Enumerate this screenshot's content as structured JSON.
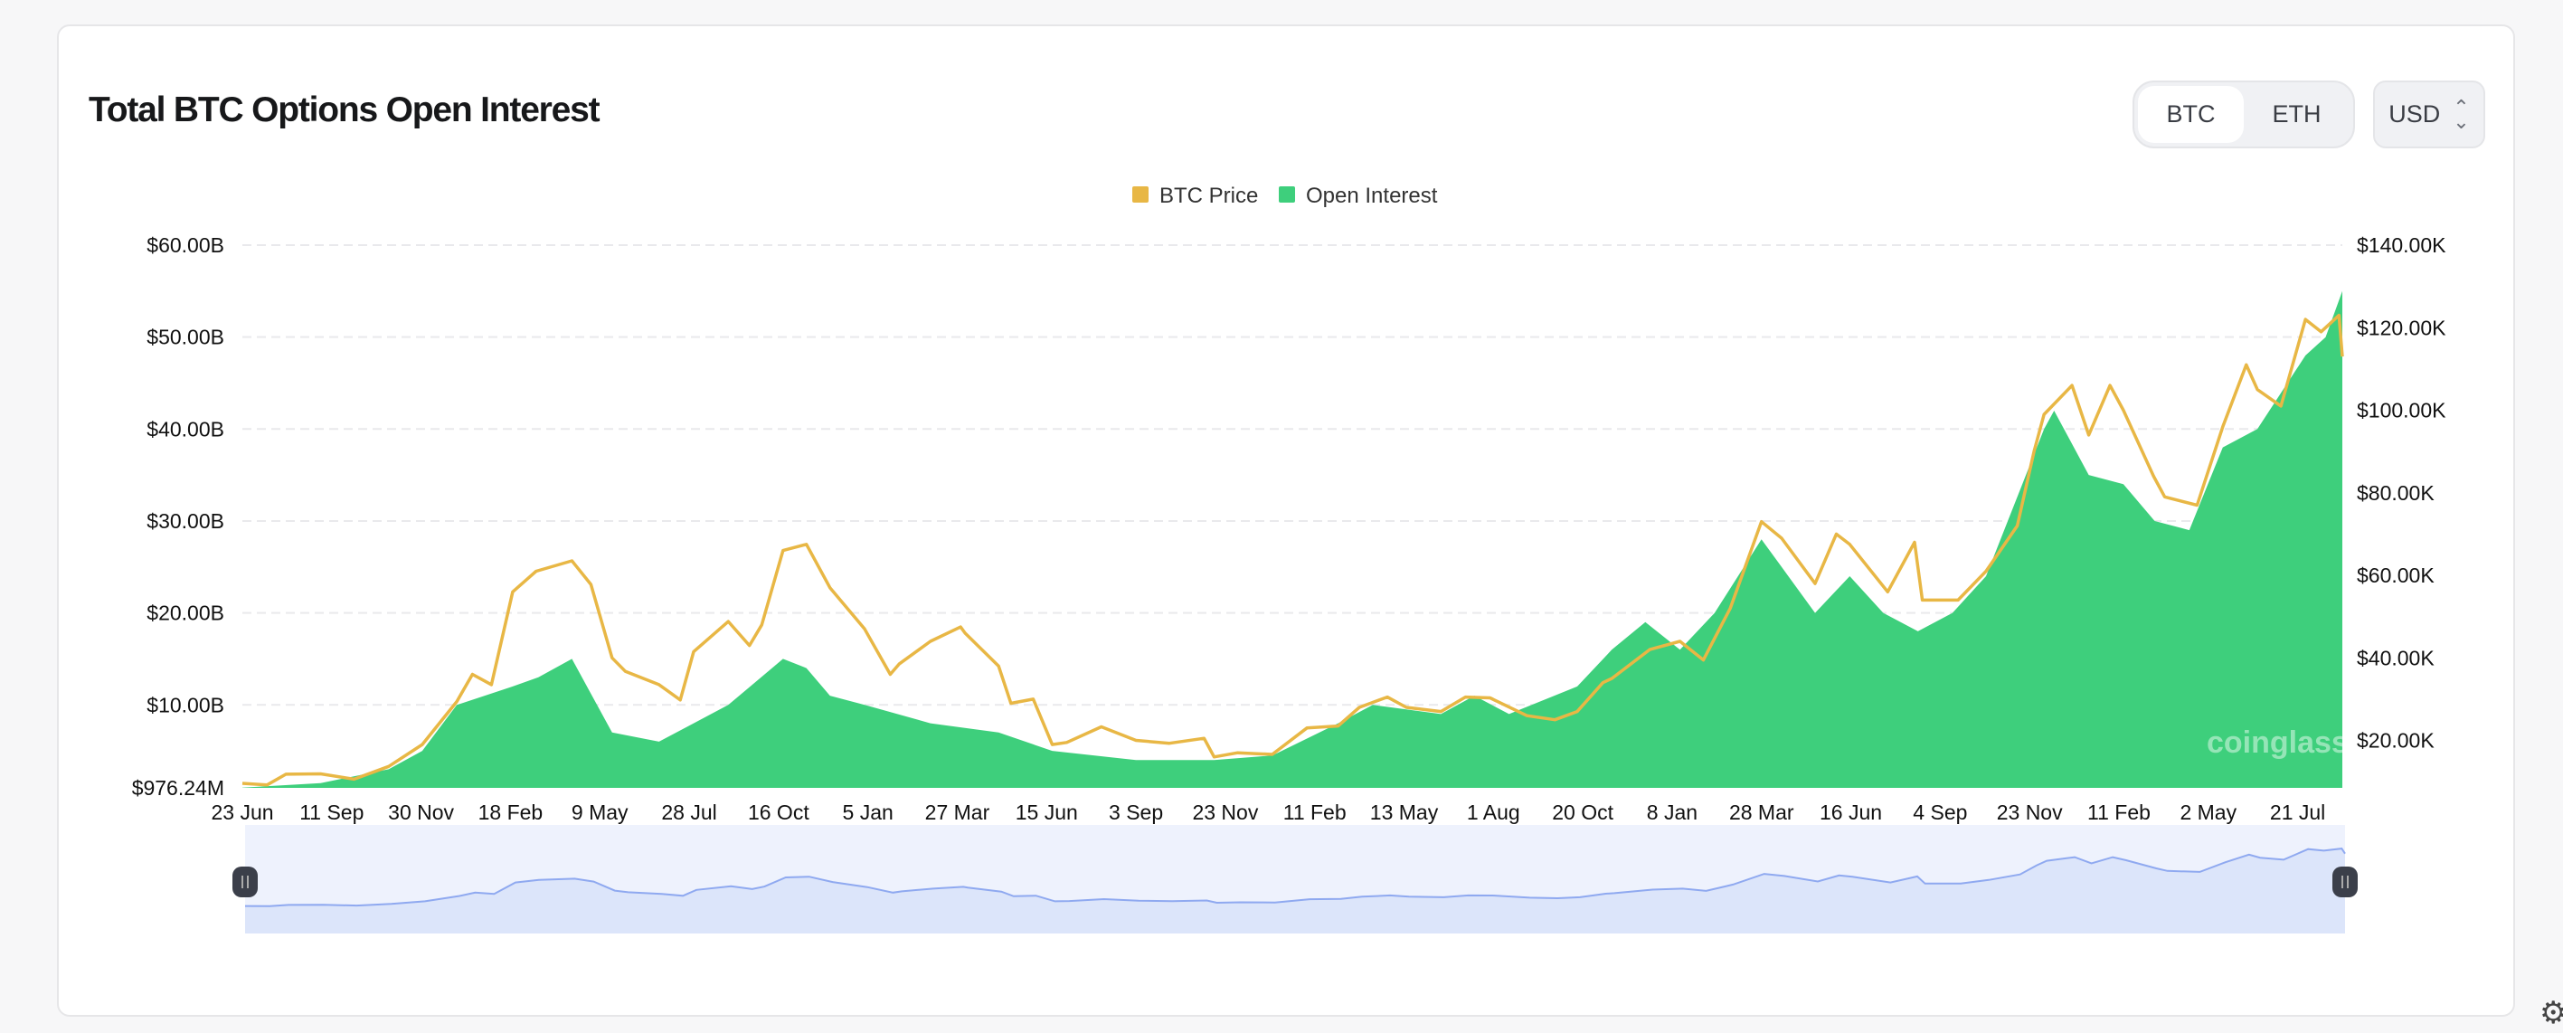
{
  "header": {
    "title": "Total BTC Options Open Interest"
  },
  "controls": {
    "assets": [
      "BTC",
      "ETH"
    ],
    "selected_asset": "BTC",
    "currency": "USD"
  },
  "watermark": "coinglass",
  "colors": {
    "price": "#E8B745",
    "open_interest": "#3ECF7C",
    "navigator_line": "#8FA9F0",
    "navigator_fill": "#DCE5FA"
  },
  "chart_data": {
    "type": "area+line",
    "legend": [
      {
        "name": "BTC Price",
        "color": "#E8B745"
      },
      {
        "name": "Open Interest",
        "color": "#3ECF7C"
      }
    ],
    "legend_position": "top-center",
    "grid": true,
    "x_range": [
      "2020-06-23",
      "2025-08-16"
    ],
    "x_ticks": [
      "23 Jun",
      "11 Sep",
      "30 Nov",
      "18 Feb",
      "9 May",
      "28 Jul",
      "16 Oct",
      "5 Jan",
      "27 Mar",
      "15 Jun",
      "3 Sep",
      "23 Nov",
      "11 Feb",
      "13 May",
      "1 Aug",
      "20 Oct",
      "8 Jan",
      "28 Mar",
      "16 Jun",
      "4 Sep",
      "23 Nov",
      "11 Feb",
      "2 May",
      "21 Jul"
    ],
    "y_left": {
      "unit": "USD billions",
      "range": [
        0.97624,
        60
      ],
      "ticks": [
        60,
        50,
        40,
        30,
        20,
        10,
        0.97624
      ],
      "tick_labels": [
        "$60.00B",
        "$50.00B",
        "$40.00B",
        "$30.00B",
        "$20.00B",
        "$10.00B",
        "$976.24M"
      ]
    },
    "y_right": {
      "unit": "USD thousands",
      "range": [
        8.5,
        140
      ],
      "ticks": [
        140,
        120,
        100,
        80,
        60,
        40,
        20
      ],
      "tick_labels": [
        "$140.00K",
        "$120.00K",
        "$100.00K",
        "$80.00K",
        "$60.00K",
        "$40.00K",
        "$20.00K"
      ]
    },
    "series": [
      {
        "name": "BTC Price",
        "axis": "right",
        "points": [
          [
            "2020-06-23",
            9.6
          ],
          [
            "2020-07-15",
            9.2
          ],
          [
            "2020-08-01",
            11.8
          ],
          [
            "2020-09-01",
            11.9
          ],
          [
            "2020-10-01",
            10.6
          ],
          [
            "2020-11-01",
            13.7
          ],
          [
            "2020-12-01",
            19.0
          ],
          [
            "2021-01-01",
            29.4
          ],
          [
            "2021-01-15",
            36
          ],
          [
            "2021-02-01",
            33.5
          ],
          [
            "2021-02-20",
            56
          ],
          [
            "2021-03-13",
            61
          ],
          [
            "2021-04-14",
            63.5
          ],
          [
            "2021-05-01",
            57.8
          ],
          [
            "2021-05-20",
            40
          ],
          [
            "2021-06-01",
            36.7
          ],
          [
            "2021-07-01",
            33.5
          ],
          [
            "2021-07-20",
            29.8
          ],
          [
            "2021-08-01",
            41.5
          ],
          [
            "2021-09-01",
            48.8
          ],
          [
            "2021-09-20",
            43
          ],
          [
            "2021-10-01",
            48
          ],
          [
            "2021-10-20",
            66
          ],
          [
            "2021-11-10",
            67.5
          ],
          [
            "2021-12-01",
            57
          ],
          [
            "2022-01-01",
            47
          ],
          [
            "2022-01-24",
            36
          ],
          [
            "2022-02-01",
            38.5
          ],
          [
            "2022-03-01",
            44
          ],
          [
            "2022-03-28",
            47.5
          ],
          [
            "2022-04-01",
            46
          ],
          [
            "2022-05-01",
            38
          ],
          [
            "2022-05-12",
            29
          ],
          [
            "2022-06-01",
            30
          ],
          [
            "2022-06-18",
            19
          ],
          [
            "2022-07-01",
            19.5
          ],
          [
            "2022-08-01",
            23.3
          ],
          [
            "2022-09-01",
            20
          ],
          [
            "2022-10-01",
            19.3
          ],
          [
            "2022-11-01",
            20.5
          ],
          [
            "2022-11-10",
            16
          ],
          [
            "2022-12-01",
            17
          ],
          [
            "2023-01-01",
            16.6
          ],
          [
            "2023-02-01",
            23
          ],
          [
            "2023-03-01",
            23.5
          ],
          [
            "2023-03-20",
            28
          ],
          [
            "2023-04-14",
            30.5
          ],
          [
            "2023-05-01",
            28
          ],
          [
            "2023-06-01",
            27
          ],
          [
            "2023-06-23",
            30.5
          ],
          [
            "2023-07-15",
            30.3
          ],
          [
            "2023-08-17",
            26
          ],
          [
            "2023-09-11",
            25
          ],
          [
            "2023-10-01",
            27
          ],
          [
            "2023-10-24",
            34
          ],
          [
            "2023-11-01",
            35
          ],
          [
            "2023-12-05",
            42
          ],
          [
            "2024-01-01",
            44
          ],
          [
            "2024-01-22",
            39.5
          ],
          [
            "2024-02-15",
            52
          ],
          [
            "2024-03-14",
            73
          ],
          [
            "2024-04-01",
            69
          ],
          [
            "2024-05-01",
            58
          ],
          [
            "2024-05-20",
            70
          ],
          [
            "2024-06-01",
            67.5
          ],
          [
            "2024-07-05",
            56
          ],
          [
            "2024-07-29",
            68
          ],
          [
            "2024-08-05",
            54
          ],
          [
            "2024-09-06",
            54
          ],
          [
            "2024-10-01",
            61
          ],
          [
            "2024-10-29",
            72
          ],
          [
            "2024-11-13",
            90
          ],
          [
            "2024-11-22",
            99
          ],
          [
            "2024-12-17",
            106
          ],
          [
            "2025-01-01",
            94
          ],
          [
            "2025-01-20",
            106
          ],
          [
            "2025-02-01",
            100
          ],
          [
            "2025-02-28",
            84
          ],
          [
            "2025-03-10",
            79
          ],
          [
            "2025-04-08",
            77
          ],
          [
            "2025-05-01",
            96
          ],
          [
            "2025-05-22",
            111
          ],
          [
            "2025-06-01",
            105
          ],
          [
            "2025-06-22",
            101
          ],
          [
            "2025-07-14",
            122
          ],
          [
            "2025-07-28",
            119
          ],
          [
            "2025-08-13",
            123
          ],
          [
            "2025-08-16",
            113
          ]
        ]
      },
      {
        "name": "Open Interest",
        "axis": "left",
        "points": [
          [
            "2020-06-23",
            1.0
          ],
          [
            "2020-09-01",
            1.5
          ],
          [
            "2020-11-01",
            3
          ],
          [
            "2020-12-01",
            5
          ],
          [
            "2021-01-01",
            10
          ],
          [
            "2021-02-20",
            12
          ],
          [
            "2021-03-15",
            13
          ],
          [
            "2021-04-14",
            15
          ],
          [
            "2021-05-20",
            7
          ],
          [
            "2021-07-01",
            6
          ],
          [
            "2021-08-01",
            8
          ],
          [
            "2021-09-01",
            10
          ],
          [
            "2021-10-20",
            15
          ],
          [
            "2021-11-10",
            14
          ],
          [
            "2021-12-01",
            11
          ],
          [
            "2022-01-01",
            10
          ],
          [
            "2022-03-01",
            8
          ],
          [
            "2022-05-01",
            7
          ],
          [
            "2022-06-18",
            5
          ],
          [
            "2022-09-01",
            4
          ],
          [
            "2022-11-10",
            4
          ],
          [
            "2023-01-01",
            4.5
          ],
          [
            "2023-03-01",
            8
          ],
          [
            "2023-04-01",
            10
          ],
          [
            "2023-06-01",
            9
          ],
          [
            "2023-07-01",
            11
          ],
          [
            "2023-08-01",
            9
          ],
          [
            "2023-10-01",
            12
          ],
          [
            "2023-11-01",
            16
          ],
          [
            "2023-12-01",
            19
          ],
          [
            "2024-01-01",
            16
          ],
          [
            "2024-02-01",
            20
          ],
          [
            "2024-03-14",
            28
          ],
          [
            "2024-04-01",
            25
          ],
          [
            "2024-05-01",
            20
          ],
          [
            "2024-06-01",
            24
          ],
          [
            "2024-07-01",
            20
          ],
          [
            "2024-08-01",
            18
          ],
          [
            "2024-09-01",
            20
          ],
          [
            "2024-10-01",
            24
          ],
          [
            "2024-11-22",
            40
          ],
          [
            "2024-12-01",
            42
          ],
          [
            "2025-01-01",
            35
          ],
          [
            "2025-02-01",
            34
          ],
          [
            "2025-03-01",
            30
          ],
          [
            "2025-04-01",
            29
          ],
          [
            "2025-05-01",
            38
          ],
          [
            "2025-06-01",
            40
          ],
          [
            "2025-07-14",
            48
          ],
          [
            "2025-08-01",
            50
          ],
          [
            "2025-08-16",
            55
          ]
        ]
      }
    ]
  }
}
